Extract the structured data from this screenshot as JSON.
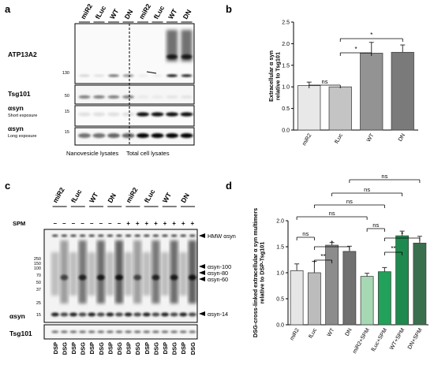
{
  "panels": {
    "a": {
      "letter": "a",
      "lanes": [
        "miR2",
        "fLuc",
        "WT",
        "DN",
        "miR2",
        "fLuc",
        "WT",
        "DN"
      ],
      "rows": [
        {
          "label": "ATP13A2",
          "sub": "",
          "mw": "130"
        },
        {
          "label": "Tsg101",
          "sub": "",
          "mw": "50"
        },
        {
          "label": "αsyn",
          "sub": "Short exposure",
          "mw": "15"
        },
        {
          "label": "αsyn",
          "sub": "Long exposure",
          "mw": "15"
        }
      ],
      "groups": [
        "Nanovesicle lysates",
        "Total cell lysates"
      ]
    },
    "b": {
      "letter": "b",
      "chart_data": {
        "type": "bar",
        "categories": [
          "miR2",
          "fLuc",
          "WT",
          "DN"
        ],
        "values": [
          1.03,
          1.0,
          1.78,
          1.8
        ],
        "errors": [
          0.08,
          0.0,
          0.25,
          0.17
        ],
        "colors": [
          "#e8e8e8",
          "#c4c4c4",
          "#939393",
          "#7a7a7a"
        ],
        "ylabel": "Extracellular α syn relative to Tsg101",
        "ylim": [
          0,
          2.5
        ],
        "yticks": [
          "0.0",
          "0.5",
          "1.0",
          "1.5",
          "2.0",
          "2.5"
        ],
        "significance": [
          {
            "pair": [
              "miR2",
              "fLuc"
            ],
            "label": "ns"
          },
          {
            "pair": [
              "fLuc",
              "WT"
            ],
            "label": "*"
          },
          {
            "pair": [
              "fLuc",
              "DN"
            ],
            "label": "*"
          }
        ]
      }
    },
    "c": {
      "letter": "c",
      "lanes": [
        "miR2",
        "fLuc",
        "WT",
        "DN",
        "miR2",
        "fLuc",
        "WT",
        "DN"
      ],
      "spm_label": "SPM",
      "spm": [
        "–",
        "–",
        "–",
        "–",
        "–",
        "–",
        "–",
        "–",
        "+",
        "+",
        "+",
        "+",
        "+",
        "+",
        "+",
        "+"
      ],
      "mw_markers": [
        "250",
        "150",
        "100",
        "70",
        "50",
        "37",
        "25",
        "15"
      ],
      "annotations": [
        "HMW αsyn",
        "αsyn-100",
        "αsyn-80",
        "αsyn-60",
        "αsyn-14"
      ],
      "row_labels": [
        "αsyn",
        "Tsg101"
      ],
      "treatments": [
        "DSP",
        "DSG",
        "DSP",
        "DSG",
        "DSP",
        "DSG",
        "DSP",
        "DSG",
        "DSP",
        "DSG",
        "DSP",
        "DSG",
        "DSP",
        "DSG",
        "DSP",
        "DSG"
      ]
    },
    "d": {
      "letter": "d",
      "chart_data": {
        "type": "bar",
        "categories": [
          "miR2",
          "fLuc",
          "WT",
          "DN",
          "miR2+SPM",
          "fLuc+SPM",
          "WT+SPM",
          "DN+SPM"
        ],
        "values": [
          1.04,
          1.0,
          1.53,
          1.41,
          0.93,
          1.02,
          1.71,
          1.57
        ],
        "errors": [
          0.13,
          0.22,
          0.05,
          0.1,
          0.06,
          0.08,
          0.09,
          0.13
        ],
        "colors": [
          "#e6e6e6",
          "#bcbcbc",
          "#8c8c8c",
          "#707070",
          "#a6d8b4",
          "#21a15a",
          "#1f8a4f",
          "#3a6f4e"
        ],
        "ylabel": "DSG-cross-linked extracellular α syn multimers relative to DSP-Tsg101",
        "ylim": [
          0,
          2.0
        ],
        "yticks": [
          "0.0",
          "0.5",
          "1.0",
          "1.5",
          "2.0"
        ],
        "significance": [
          {
            "pair": [
              "miR2",
              "fLuc"
            ],
            "label": "ns"
          },
          {
            "pair": [
              "fLuc",
              "WT"
            ],
            "label": "**"
          },
          {
            "pair": [
              "fLuc",
              "DN"
            ],
            "label": "*"
          },
          {
            "pair": [
              "miR2+SPM",
              "fLuc+SPM"
            ],
            "label": "ns"
          },
          {
            "pair": [
              "fLuc+SPM",
              "WT+SPM"
            ],
            "label": "**"
          },
          {
            "pair": [
              "fLuc+SPM",
              "DN+SPM"
            ],
            "label": "*"
          },
          {
            "pair": [
              "miR2",
              "miR2+SPM"
            ],
            "label": "ns"
          },
          {
            "pair": [
              "fLuc",
              "fLuc+SPM"
            ],
            "label": "ns"
          },
          {
            "pair": [
              "WT",
              "WT+SPM"
            ],
            "label": "ns"
          },
          {
            "pair": [
              "DN",
              "DN+SPM"
            ],
            "label": "ns"
          }
        ]
      }
    }
  }
}
